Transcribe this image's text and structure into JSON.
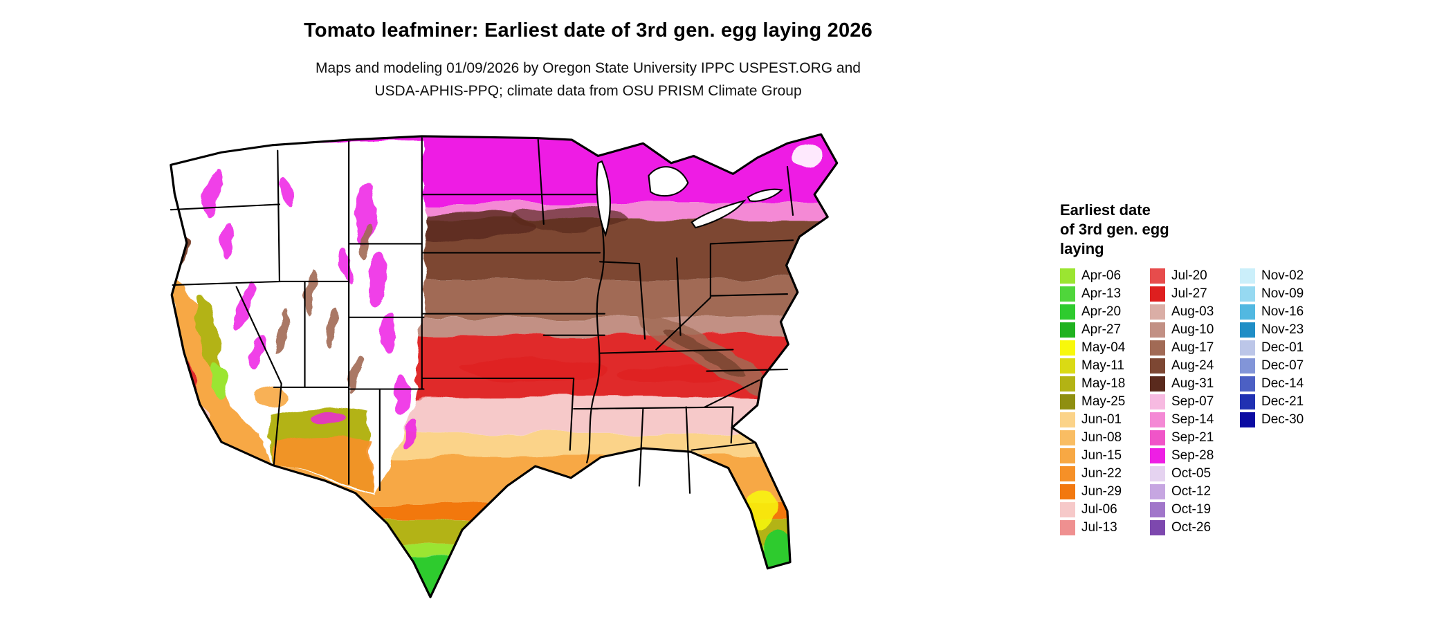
{
  "page": {
    "title": "Tomato leafminer: Earliest date of 3rd gen. egg laying 2026",
    "subtitle_line1": "Maps and modeling 01/09/2026 by Oregon State University IPPC USPEST.ORG and",
    "subtitle_line2": "USDA-APHIS-PPQ; climate data from OSU PRISM Climate Group"
  },
  "legend": {
    "title_lines": [
      "Earliest date",
      "of 3rd gen. egg",
      "laying"
    ],
    "columns": [
      {
        "entries": [
          {
            "label": "Apr-06",
            "color": "#9BE531"
          },
          {
            "label": "Apr-13",
            "color": "#4FD63B"
          },
          {
            "label": "Apr-20",
            "color": "#2ECB2E"
          },
          {
            "label": "Apr-27",
            "color": "#20B220"
          },
          {
            "label": "May-04",
            "color": "#F8F80B"
          },
          {
            "label": "May-11",
            "color": "#DADA14"
          },
          {
            "label": "May-18",
            "color": "#B3B314"
          },
          {
            "label": "May-25",
            "color": "#8F8F10"
          },
          {
            "label": "Jun-01",
            "color": "#FBD389"
          },
          {
            "label": "Jun-08",
            "color": "#F9BD63"
          },
          {
            "label": "Jun-15",
            "color": "#F7A844"
          },
          {
            "label": "Jun-22",
            "color": "#F69027"
          },
          {
            "label": "Jun-29",
            "color": "#F2780F"
          },
          {
            "label": "Jul-06",
            "color": "#F6C9C9"
          },
          {
            "label": "Jul-13",
            "color": "#EF9090"
          }
        ]
      },
      {
        "entries": [
          {
            "label": "Jul-20",
            "color": "#E74C4C"
          },
          {
            "label": "Jul-27",
            "color": "#DE1F1F"
          },
          {
            "label": "Aug-03",
            "color": "#DAAEA6"
          },
          {
            "label": "Aug-10",
            "color": "#C29084"
          },
          {
            "label": "Aug-17",
            "color": "#A16A55"
          },
          {
            "label": "Aug-24",
            "color": "#7D4733"
          },
          {
            "label": "Aug-31",
            "color": "#5A2A1D"
          },
          {
            "label": "Sep-07",
            "color": "#F7BAE1"
          },
          {
            "label": "Sep-14",
            "color": "#F489D5"
          },
          {
            "label": "Sep-21",
            "color": "#F055C8"
          },
          {
            "label": "Sep-28",
            "color": "#EE1FE4"
          },
          {
            "label": "Oct-05",
            "color": "#E5D3F0"
          },
          {
            "label": "Oct-12",
            "color": "#C6A6E1"
          },
          {
            "label": "Oct-19",
            "color": "#A176CA"
          },
          {
            "label": "Oct-26",
            "color": "#7D48AE"
          }
        ]
      },
      {
        "entries": [
          {
            "label": "Nov-02",
            "color": "#CBEFFA"
          },
          {
            "label": "Nov-09",
            "color": "#96D9F1"
          },
          {
            "label": "Nov-16",
            "color": "#52B8E1"
          },
          {
            "label": "Nov-23",
            "color": "#1F8EC6"
          },
          {
            "label": "Dec-01",
            "color": "#BCC6E8"
          },
          {
            "label": "Dec-07",
            "color": "#8295D8"
          },
          {
            "label": "Dec-14",
            "color": "#4C60C4"
          },
          {
            "label": "Dec-21",
            "color": "#2031B2"
          },
          {
            "label": "Dec-30",
            "color": "#0B0BA2"
          }
        ]
      }
    ]
  }
}
